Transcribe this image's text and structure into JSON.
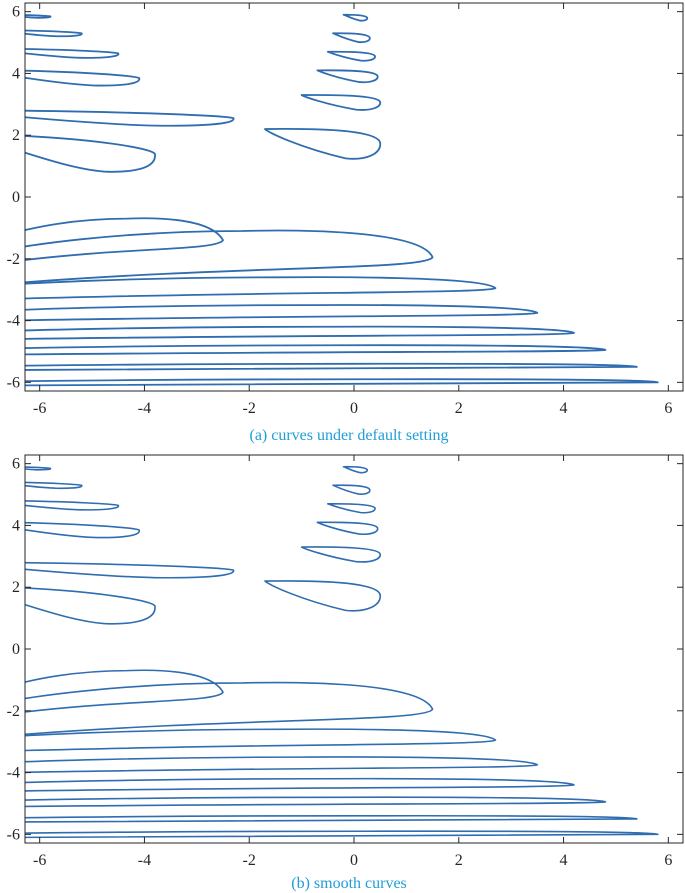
{
  "colors": {
    "curve": "#2f6db0",
    "axis": "#262626",
    "caption": "#1f9dd6",
    "background": "#ffffff"
  },
  "chart_data": [
    {
      "type": "line",
      "caption": "(a) curves under default setting",
      "xlim": [
        -6.28,
        6.28
      ],
      "ylim": [
        -6.28,
        6.28
      ],
      "xticks": [
        -6,
        -4,
        -2,
        0,
        2,
        4,
        6
      ],
      "yticks": [
        -6,
        -4,
        -2,
        0,
        2,
        4,
        6
      ],
      "xtick_labels": [
        "-6",
        "-4",
        "-2",
        "0",
        "2",
        "4",
        "6"
      ],
      "ytick_labels": [
        "-6",
        "-4",
        "-2",
        "0",
        "2",
        "4",
        "6"
      ],
      "grid": false,
      "box": true,
      "curve_family": "level set with one lobe per band; lobe tip x and band y listed below",
      "lower_lobes": [
        {
          "y_top": -0.7,
          "y_bottom": -2.1,
          "tip_x": -2.5
        },
        {
          "y_top": -1.1,
          "y_bottom": -2.8,
          "tip_x": 1.5
        },
        {
          "y_top": -2.6,
          "y_bottom": -3.3,
          "tip_x": 2.7
        },
        {
          "y_top": -3.5,
          "y_bottom": -4.0,
          "tip_x": 3.5
        },
        {
          "y_top": -4.2,
          "y_bottom": -4.6,
          "tip_x": 4.2
        },
        {
          "y_top": -4.8,
          "y_bottom": -5.1,
          "tip_x": 4.8
        },
        {
          "y_top": -5.4,
          "y_bottom": -5.6,
          "tip_x": 5.4
        },
        {
          "y_top": -5.9,
          "y_bottom": -6.1,
          "tip_x": 5.8
        }
      ],
      "upper_left_lobes": [
        {
          "y_top": 2.0,
          "y_bottom": 0.8,
          "tip_x": -3.8
        },
        {
          "y_top": 2.8,
          "y_bottom": 2.3,
          "tip_x": -2.3
        },
        {
          "y_top": 4.1,
          "y_bottom": 3.6,
          "tip_x": -4.1
        },
        {
          "y_top": 4.8,
          "y_bottom": 4.5,
          "tip_x": -4.5
        },
        {
          "y_top": 5.4,
          "y_bottom": 5.2,
          "tip_x": -5.2
        },
        {
          "y_top": 5.9,
          "y_bottom": 5.8,
          "tip_x": -5.8
        }
      ],
      "upper_center_lobes": [
        {
          "y_top": 2.2,
          "y_bottom": 1.2,
          "left_x": -1.7,
          "right_x": 0.5
        },
        {
          "y_top": 3.3,
          "y_bottom": 2.8,
          "left_x": -1.0,
          "right_x": 0.5
        },
        {
          "y_top": 4.1,
          "y_bottom": 3.7,
          "left_x": -0.7,
          "right_x": 0.45
        },
        {
          "y_top": 4.7,
          "y_bottom": 4.4,
          "left_x": -0.5,
          "right_x": 0.4
        },
        {
          "y_top": 5.3,
          "y_bottom": 5.0,
          "left_x": -0.4,
          "right_x": 0.3
        },
        {
          "y_top": 5.9,
          "y_bottom": 5.7,
          "left_x": -0.2,
          "right_x": 0.25
        }
      ]
    },
    {
      "type": "line",
      "caption": "(b) smooth curves",
      "xlim": [
        -6.28,
        6.28
      ],
      "ylim": [
        -6.28,
        6.28
      ],
      "xticks": [
        -6,
        -4,
        -2,
        0,
        2,
        4,
        6
      ],
      "yticks": [
        -6,
        -4,
        -2,
        0,
        2,
        4,
        6
      ],
      "xtick_labels": [
        "-6",
        "-4",
        "-2",
        "0",
        "2",
        "4",
        "6"
      ],
      "ytick_labels": [
        "-6",
        "-4",
        "-2",
        "0",
        "2",
        "4",
        "6"
      ],
      "grid": false,
      "box": true,
      "curve_family": "same level set as (a), drawn smoother",
      "lower_lobes": [
        {
          "y_top": -0.7,
          "y_bottom": -2.1,
          "tip_x": -2.5
        },
        {
          "y_top": -1.1,
          "y_bottom": -2.8,
          "tip_x": 1.5
        },
        {
          "y_top": -2.6,
          "y_bottom": -3.3,
          "tip_x": 2.7
        },
        {
          "y_top": -3.5,
          "y_bottom": -4.0,
          "tip_x": 3.5
        },
        {
          "y_top": -4.2,
          "y_bottom": -4.6,
          "tip_x": 4.2
        },
        {
          "y_top": -4.8,
          "y_bottom": -5.1,
          "tip_x": 4.8
        },
        {
          "y_top": -5.4,
          "y_bottom": -5.6,
          "tip_x": 5.4
        },
        {
          "y_top": -5.9,
          "y_bottom": -6.1,
          "tip_x": 5.8
        }
      ],
      "upper_left_lobes": [
        {
          "y_top": 2.0,
          "y_bottom": 0.8,
          "tip_x": -3.8
        },
        {
          "y_top": 2.8,
          "y_bottom": 2.3,
          "tip_x": -2.3
        },
        {
          "y_top": 4.1,
          "y_bottom": 3.6,
          "tip_x": -4.1
        },
        {
          "y_top": 4.8,
          "y_bottom": 4.5,
          "tip_x": -4.5
        },
        {
          "y_top": 5.4,
          "y_bottom": 5.2,
          "tip_x": -5.2
        },
        {
          "y_top": 5.9,
          "y_bottom": 5.8,
          "tip_x": -5.8
        }
      ],
      "upper_center_lobes": [
        {
          "y_top": 2.2,
          "y_bottom": 1.2,
          "left_x": -1.7,
          "right_x": 0.5
        },
        {
          "y_top": 3.3,
          "y_bottom": 2.8,
          "left_x": -1.0,
          "right_x": 0.5
        },
        {
          "y_top": 4.1,
          "y_bottom": 3.7,
          "left_x": -0.7,
          "right_x": 0.45
        },
        {
          "y_top": 4.7,
          "y_bottom": 4.4,
          "left_x": -0.5,
          "right_x": 0.4
        },
        {
          "y_top": 5.3,
          "y_bottom": 5.0,
          "left_x": -0.4,
          "right_x": 0.3
        },
        {
          "y_top": 5.9,
          "y_bottom": 5.7,
          "left_x": -0.2,
          "right_x": 0.25
        }
      ]
    }
  ]
}
